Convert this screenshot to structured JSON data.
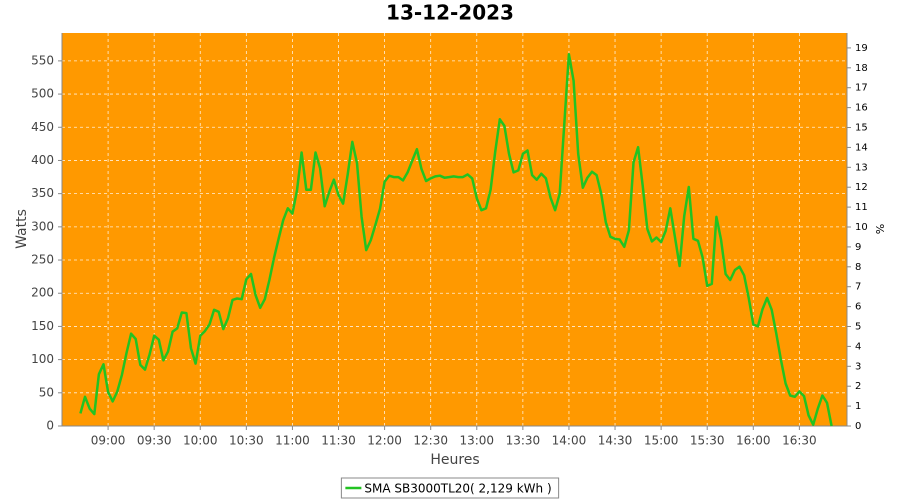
{
  "chart_data": {
    "type": "line",
    "title": "13-12-2023",
    "xlabel": "Heures",
    "ylabel": "Watts",
    "y2label": "%",
    "x": [
      522,
      525,
      528,
      531,
      534,
      537,
      540,
      543,
      546,
      549,
      552,
      555,
      558,
      561,
      564,
      567,
      570,
      573,
      576,
      579,
      582,
      585,
      588,
      591,
      594,
      597,
      600,
      603,
      606,
      609,
      612,
      615,
      618,
      621,
      624,
      627,
      630,
      633,
      636,
      639,
      642,
      645,
      648,
      651,
      654,
      657,
      660,
      663,
      666,
      669,
      672,
      675,
      678,
      681,
      684,
      687,
      690,
      693,
      696,
      699,
      702,
      705,
      708,
      711,
      714,
      717,
      720,
      723,
      726,
      729,
      732,
      735,
      738,
      741,
      744,
      747,
      750,
      753,
      756,
      759,
      762,
      765,
      768,
      771,
      774,
      777,
      780,
      783,
      786,
      789,
      792,
      795,
      798,
      801,
      804,
      807,
      810,
      813,
      816,
      819,
      822,
      825,
      828,
      831,
      834,
      837,
      840,
      843,
      846,
      849,
      852,
      855,
      858,
      861,
      864,
      867,
      870,
      873,
      876,
      879,
      882,
      885,
      888,
      891,
      894,
      897,
      900,
      903,
      906,
      909,
      912,
      915,
      918,
      921,
      924,
      927,
      930,
      933,
      936,
      939,
      942,
      945,
      948,
      951,
      954,
      957,
      960,
      963,
      966,
      969,
      972,
      975,
      978,
      981,
      984,
      987,
      990,
      993,
      996,
      999,
      1002,
      1005,
      1008,
      1011
    ],
    "series": [
      {
        "name": "SMA SB3000TL20( 2,129 kWh )",
        "color": "#22c322",
        "values": [
          19,
          44,
          26,
          18,
          78,
          93,
          51,
          37,
          52,
          77,
          110,
          139,
          131,
          92,
          85,
          108,
          136,
          130,
          99,
          112,
          142,
          147,
          171,
          170,
          117,
          94,
          136,
          143,
          153,
          175,
          172,
          146,
          162,
          190,
          192,
          191,
          221,
          229,
          197,
          178,
          191,
          220,
          253,
          282,
          310,
          328,
          320,
          355,
          412,
          356,
          356,
          412,
          388,
          331,
          353,
          371,
          348,
          335,
          379,
          428,
          396,
          315,
          265,
          280,
          303,
          327,
          368,
          377,
          375,
          375,
          370,
          382,
          400,
          417,
          387,
          369,
          373,
          376,
          377,
          374,
          375,
          376,
          375,
          375,
          379,
          373,
          343,
          325,
          328,
          356,
          413,
          462,
          452,
          410,
          382,
          385,
          410,
          415,
          378,
          371,
          380,
          373,
          344,
          325,
          350,
          455,
          560,
          520,
          410,
          359,
          374,
          383,
          378,
          350,
          307,
          285,
          282,
          281,
          270,
          295,
          397,
          420,
          362,
          297,
          278,
          284,
          277,
          294,
          328,
          285,
          241,
          316,
          360,
          282,
          279,
          254,
          211,
          214,
          315,
          281,
          229,
          220,
          235,
          240,
          227,
          193,
          153,
          150,
          176,
          193,
          175,
          139,
          100,
          64,
          46,
          44,
          52,
          45,
          16,
          2,
          26,
          46,
          35,
          0
        ]
      }
    ],
    "xlim": [
      510,
      1021
    ],
    "xticks": [
      {
        "value": 540,
        "label": "09:00"
      },
      {
        "value": 570,
        "label": "09:30"
      },
      {
        "value": 600,
        "label": "10:00"
      },
      {
        "value": 630,
        "label": "10:30"
      },
      {
        "value": 660,
        "label": "11:00"
      },
      {
        "value": 690,
        "label": "11:30"
      },
      {
        "value": 720,
        "label": "12:00"
      },
      {
        "value": 750,
        "label": "12:30"
      },
      {
        "value": 780,
        "label": "13:00"
      },
      {
        "value": 810,
        "label": "13:30"
      },
      {
        "value": 840,
        "label": "14:00"
      },
      {
        "value": 870,
        "label": "14:30"
      },
      {
        "value": 900,
        "label": "15:00"
      },
      {
        "value": 930,
        "label": "15:30"
      },
      {
        "value": 960,
        "label": "16:00"
      },
      {
        "value": 990,
        "label": "16:30"
      }
    ],
    "ylim": [
      0,
      592
    ],
    "yticks": [
      0,
      50,
      100,
      150,
      200,
      250,
      300,
      350,
      400,
      450,
      500,
      550
    ],
    "y2lim": [
      0,
      19.75
    ],
    "y2ticks": [
      0,
      1,
      2,
      3,
      4,
      5,
      6,
      7,
      8,
      9,
      10,
      11,
      12,
      13,
      14,
      15,
      16,
      17,
      18,
      19
    ],
    "grid": true,
    "background": "#ff9900",
    "legend": "bottom"
  }
}
